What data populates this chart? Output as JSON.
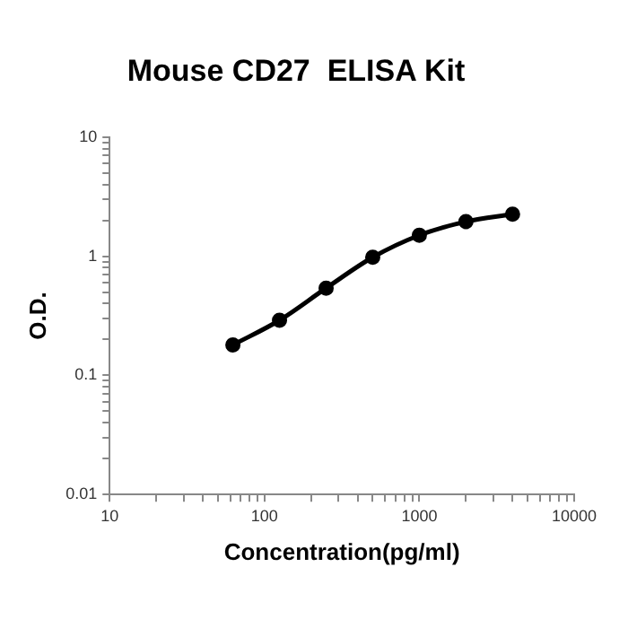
{
  "chart_data": {
    "type": "line",
    "title": "Mouse CD27  ELISA Kit",
    "xlabel": "Concentration(pg/ml)",
    "ylabel": "O.D.",
    "x": [
      62.5,
      125,
      250,
      500,
      1000,
      2000,
      4000
    ],
    "series": [
      {
        "color": "#000000",
        "values": [
          0.18,
          0.29,
          0.54,
          0.98,
          1.5,
          1.95,
          2.25
        ]
      }
    ],
    "log": "xy",
    "xlim": [
      10,
      10000
    ],
    "ylim": [
      0.01,
      10
    ],
    "xticks": [
      10,
      {
        "value": 20,
        "label": null
      },
      {
        "value": 30,
        "label": null
      },
      {
        "value": 40,
        "label": null
      },
      {
        "value": 50,
        "label": null
      },
      {
        "value": 60,
        "label": null
      },
      {
        "value": 70,
        "label": null
      },
      {
        "value": 80,
        "label": null
      },
      {
        "value": 90,
        "label": null
      },
      100,
      {
        "value": 200,
        "label": null
      },
      {
        "value": 300,
        "label": null
      },
      {
        "value": 400,
        "label": null
      },
      {
        "value": 500,
        "label": null
      },
      {
        "value": 600,
        "label": null
      },
      {
        "value": 700,
        "label": null
      },
      {
        "value": 800,
        "label": null
      },
      {
        "value": 900,
        "label": null
      },
      1000,
      {
        "value": 2000,
        "label": null
      },
      {
        "value": 3000,
        "label": null
      },
      {
        "value": 4000,
        "label": null
      },
      {
        "value": 5000,
        "label": null
      },
      {
        "value": 6000,
        "label": null
      },
      {
        "value": 7000,
        "label": null
      },
      {
        "value": 8000,
        "label": null
      },
      {
        "value": 9000,
        "label": null
      },
      10000
    ],
    "yticks": [
      0.01,
      {
        "value": 0.02,
        "label": null
      },
      {
        "value": 0.03,
        "label": null
      },
      {
        "value": 0.04,
        "label": null
      },
      {
        "value": 0.05,
        "label": null
      },
      {
        "value": 0.06,
        "label": null
      },
      {
        "value": 0.07,
        "label": null
      },
      {
        "value": 0.08,
        "label": null
      },
      {
        "value": 0.09,
        "label": null
      },
      0.1,
      {
        "value": 0.2,
        "label": null
      },
      {
        "value": 0.3,
        "label": null
      },
      {
        "value": 0.4,
        "label": null
      },
      {
        "value": 0.5,
        "label": null
      },
      {
        "value": 0.6,
        "label": null
      },
      {
        "value": 0.7,
        "label": null
      },
      {
        "value": 0.8,
        "label": null
      },
      {
        "value": 0.9,
        "label": null
      },
      1,
      {
        "value": 2,
        "label": null
      },
      {
        "value": 3,
        "label": null
      },
      {
        "value": 4,
        "label": null
      },
      {
        "value": 5,
        "label": null
      },
      {
        "value": 6,
        "label": null
      },
      {
        "value": 7,
        "label": null
      },
      {
        "value": 8,
        "label": null
      },
      {
        "value": 9,
        "label": null
      },
      10
    ],
    "grid": false,
    "legend": false,
    "marker": "circle",
    "line_style": "solid"
  }
}
